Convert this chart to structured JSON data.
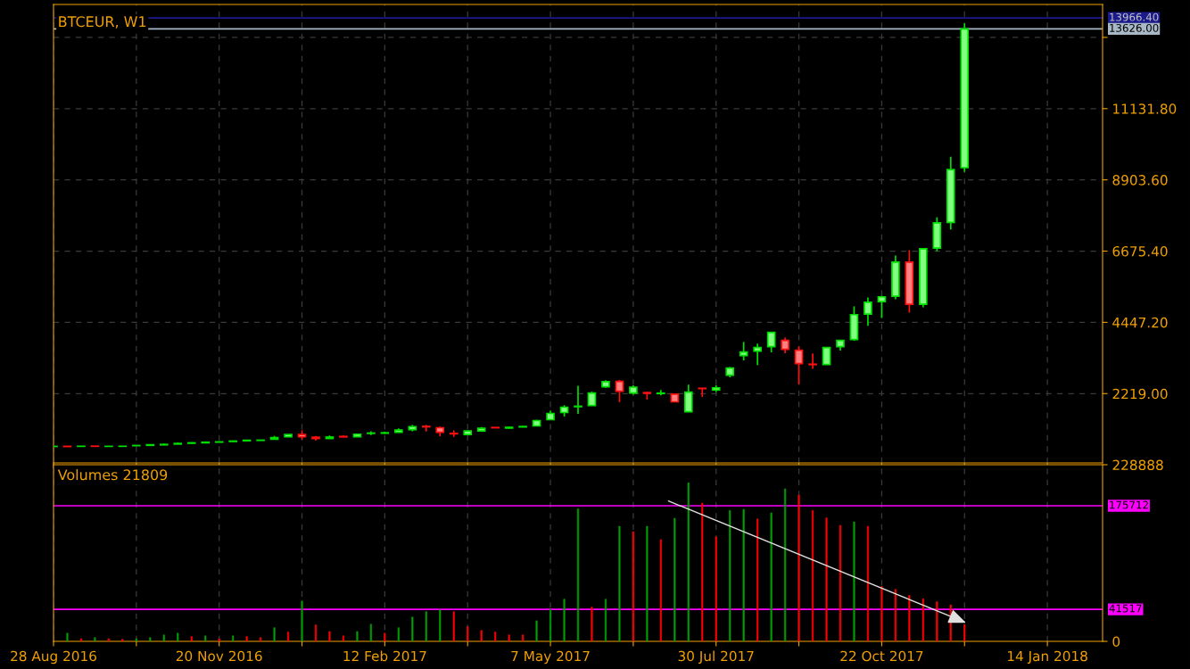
{
  "chart_data": [
    {
      "type": "candlestick",
      "title": "BTCEUR, W1",
      "x": [
        "2016-08-28",
        "2016-09-04",
        "2016-09-11",
        "2016-09-18",
        "2016-09-25",
        "2016-10-02",
        "2016-10-09",
        "2016-10-16",
        "2016-10-23",
        "2016-10-30",
        "2016-11-06",
        "2016-11-13",
        "2016-11-20",
        "2016-11-27",
        "2016-12-04",
        "2016-12-11",
        "2016-12-18",
        "2016-12-25",
        "2017-01-01",
        "2017-01-08",
        "2017-01-15",
        "2017-01-22",
        "2017-01-29",
        "2017-02-05",
        "2017-02-12",
        "2017-02-19",
        "2017-02-26",
        "2017-03-05",
        "2017-03-12",
        "2017-03-19",
        "2017-03-26",
        "2017-04-02",
        "2017-04-09",
        "2017-04-16",
        "2017-04-23",
        "2017-04-30",
        "2017-05-07",
        "2017-05-14",
        "2017-05-21",
        "2017-05-28",
        "2017-06-04",
        "2017-06-11",
        "2017-06-18",
        "2017-06-25",
        "2017-07-02",
        "2017-07-09",
        "2017-07-16",
        "2017-07-23",
        "2017-07-30",
        "2017-08-06",
        "2017-08-13",
        "2017-08-20",
        "2017-08-27",
        "2017-09-03",
        "2017-09-10",
        "2017-09-17",
        "2017-09-24",
        "2017-10-01",
        "2017-10-08",
        "2017-10-15",
        "2017-10-22",
        "2017-10-29",
        "2017-11-05",
        "2017-11-12",
        "2017-11-19",
        "2017-11-26",
        "2017-12-03"
      ],
      "ohlc": [
        [
          565,
          572,
          560,
          568
        ],
        [
          570,
          575,
          560,
          563
        ],
        [
          569,
          574,
          564,
          572
        ],
        [
          575,
          578,
          570,
          571
        ],
        [
          568,
          572,
          564,
          570
        ],
        [
          570,
          574,
          566,
          572
        ],
        [
          590,
          598,
          585,
          596
        ],
        [
          600,
          625,
          580,
          620
        ],
        [
          615,
          660,
          610,
          630
        ],
        [
          640,
          690,
          635,
          660
        ],
        [
          665,
          700,
          655,
          680
        ],
        [
          680,
          715,
          670,
          700
        ],
        [
          700,
          720,
          695,
          710
        ],
        [
          720,
          740,
          715,
          735
        ],
        [
          745,
          765,
          735,
          760
        ],
        [
          755,
          770,
          750,
          763
        ],
        [
          793,
          896,
          785,
          843
        ],
        [
          866,
          945,
          860,
          938
        ],
        [
          940,
          1071,
          782,
          866
        ],
        [
          855,
          896,
          750,
          815
        ],
        [
          815,
          910,
          810,
          860
        ],
        [
          880,
          905,
          855,
          865
        ],
        [
          870,
          955,
          865,
          950
        ],
        [
          975,
          1040,
          920,
          985
        ],
        [
          980,
          1030,
          960,
          995
        ],
        [
          1010,
          1133,
          1005,
          1080
        ],
        [
          1091,
          1240,
          1040,
          1186
        ],
        [
          1195,
          1240,
          1035,
          1180
        ],
        [
          1152,
          1186,
          885,
          1010
        ],
        [
          975,
          1071,
          866,
          960
        ],
        [
          940,
          1071,
          925,
          1050
        ],
        [
          1050,
          1176,
          1030,
          1133
        ],
        [
          1160,
          1165,
          1140,
          1150
        ],
        [
          1140,
          1185,
          1120,
          1165
        ],
        [
          1175,
          1210,
          1170,
          1190
        ],
        [
          1208,
          1400,
          1200,
          1375
        ],
        [
          1403,
          1690,
          1400,
          1598
        ],
        [
          1626,
          1857,
          1503,
          1793
        ],
        [
          1810,
          2461,
          1587,
          1825
        ],
        [
          1848,
          2280,
          1840,
          2238
        ],
        [
          2433,
          2640,
          2400,
          2590
        ],
        [
          2600,
          2650,
          1949,
          2294
        ],
        [
          2238,
          2480,
          2190,
          2422
        ],
        [
          2250,
          2275,
          2033,
          2230
        ],
        [
          2220,
          2330,
          2160,
          2235
        ],
        [
          2200,
          2210,
          1950,
          1960
        ],
        [
          1653,
          2498,
          1650,
          2266
        ],
        [
          2385,
          2400,
          2116,
          2375
        ],
        [
          2330,
          2480,
          2270,
          2400
        ],
        [
          2796,
          3050,
          2730,
          3018
        ],
        [
          3408,
          3834,
          3258,
          3520
        ],
        [
          3547,
          3779,
          3110,
          3659
        ],
        [
          3687,
          4140,
          3508,
          4132
        ],
        [
          3882,
          3973,
          3480,
          3603
        ],
        [
          3575,
          3695,
          2506,
          3157
        ],
        [
          3140,
          3472,
          2990,
          3125
        ],
        [
          3130,
          3670,
          3120,
          3659
        ],
        [
          3687,
          3890,
          3564,
          3882
        ],
        [
          3909,
          4948,
          3870,
          4689
        ],
        [
          4706,
          5227,
          4336,
          5077
        ],
        [
          5096,
          5282,
          4586,
          5246
        ],
        [
          5264,
          6536,
          5170,
          6332
        ],
        [
          6332,
          6703,
          4753,
          5013
        ],
        [
          5013,
          6760,
          4920,
          6750
        ],
        [
          6768,
          7733,
          6675,
          7557
        ],
        [
          7574,
          9627,
          7352,
          9226
        ],
        [
          9284,
          13800,
          9154,
          13626
        ]
      ],
      "colors": [
        "#80ff80",
        "#ff8080",
        "#80ff80",
        "#ff8080",
        "#80ff80",
        "#80ff80",
        "#80ff80",
        "#80ff80",
        "#80ff80",
        "#80ff80",
        "#80ff80",
        "#80ff80",
        "#80ff80",
        "#80ff80",
        "#80ff80",
        "#80ff80",
        "#80ff80",
        "#80ff80",
        "#ff8080",
        "#ff8080",
        "#80ff80",
        "#ff8080",
        "#80ff80",
        "#80ff80",
        "#80ff80",
        "#80ff80",
        "#80ff80",
        "#ff8080",
        "#ff8080",
        "#ff8080",
        "#80ff80",
        "#80ff80",
        "#ff8080",
        "#80ff80",
        "#80ff80",
        "#80ff80",
        "#80ff80",
        "#80ff80",
        "#80ff80",
        "#80ff80",
        "#80ff80",
        "#ff8080",
        "#80ff80",
        "#ff8080",
        "#80ff80",
        "#ff8080",
        "#80ff80",
        "#ff8080",
        "#80ff80",
        "#80ff80",
        "#80ff80",
        "#80ff80",
        "#80ff80",
        "#ff8080",
        "#ff8080",
        "#ff8080",
        "#80ff80",
        "#80ff80",
        "#80ff80",
        "#80ff80",
        "#80ff80",
        "#80ff80",
        "#ff8080",
        "#80ff80",
        "#80ff80",
        "#80ff80",
        "#80ff80"
      ],
      "xlim": [
        "2016-08-28",
        "2018-02-11"
      ],
      "xticks": [
        {
          "value": "2016-08-28",
          "label": null
        },
        {
          "value": "2016-10-09",
          "label": null
        },
        {
          "value": "2016-11-20",
          "label": null
        },
        {
          "value": "2017-01-01",
          "label": null
        },
        {
          "value": "2017-02-12",
          "label": null
        },
        {
          "value": "2017-03-26",
          "label": null
        },
        {
          "value": "2017-05-07",
          "label": null
        },
        {
          "value": "2017-06-18",
          "label": null
        },
        {
          "value": "2017-07-30",
          "label": null
        },
        {
          "value": "2017-09-10",
          "label": null
        },
        {
          "value": "2017-10-22",
          "label": null
        },
        {
          "value": "2017-12-03",
          "label": null
        },
        {
          "value": "2018-01-14",
          "label": null
        }
      ],
      "ylim": [
        50,
        14390
      ],
      "yticks": [
        {
          "value": 2219,
          "label": "2219.00"
        },
        {
          "value": 4447.2,
          "label": "4447.20"
        },
        {
          "value": 6675.4,
          "label": "6675.40"
        },
        {
          "value": 8903.6,
          "label": "8903.60"
        },
        {
          "value": 11131.8,
          "label": "11131.80"
        },
        {
          "value": 13360,
          "label": null
        }
      ],
      "ref_lines": [
        {
          "axis": "y",
          "value": 13966.4,
          "label": "13966.40",
          "color": "#1a1a8c"
        },
        {
          "axis": "y",
          "value": 13626,
          "label": "13626.00",
          "color": "#a9b8c6"
        }
      ],
      "grid": true,
      "tick_labels": "y"
    },
    {
      "type": "bar",
      "title": "Volumes 21809",
      "x": [
        "2016-09-04",
        "2016-09-11",
        "2016-09-18",
        "2016-09-25",
        "2016-10-02",
        "2016-10-09",
        "2016-10-16",
        "2016-10-23",
        "2016-10-30",
        "2016-11-06",
        "2016-11-13",
        "2016-11-20",
        "2016-11-27",
        "2016-12-04",
        "2016-12-11",
        "2016-12-18",
        "2016-12-25",
        "2017-01-01",
        "2017-01-08",
        "2017-01-15",
        "2017-01-22",
        "2017-01-29",
        "2017-02-05",
        "2017-02-12",
        "2017-02-19",
        "2017-02-26",
        "2017-03-05",
        "2017-03-12",
        "2017-03-19",
        "2017-03-26",
        "2017-04-02",
        "2017-04-09",
        "2017-04-16",
        "2017-04-23",
        "2017-04-30",
        "2017-05-07",
        "2017-05-14",
        "2017-05-21",
        "2017-05-28",
        "2017-06-04",
        "2017-06-11",
        "2017-06-18",
        "2017-06-25",
        "2017-07-02",
        "2017-07-09",
        "2017-07-16",
        "2017-07-23",
        "2017-07-30",
        "2017-08-06",
        "2017-08-13",
        "2017-08-20",
        "2017-08-27",
        "2017-09-03",
        "2017-09-10",
        "2017-09-17",
        "2017-09-24",
        "2017-10-01",
        "2017-10-08",
        "2017-10-15",
        "2017-10-22",
        "2017-10-29",
        "2017-11-05",
        "2017-11-12",
        "2017-11-19",
        "2017-11-26",
        "2017-12-03"
      ],
      "values": [
        10600,
        3500,
        4900,
        3500,
        2700,
        3500,
        4900,
        8400,
        10600,
        6200,
        7100,
        3500,
        7100,
        6200,
        4900,
        17700,
        12000,
        52300,
        21300,
        12800,
        7100,
        12800,
        22200,
        10600,
        17700,
        31500,
        38500,
        40800,
        38500,
        19000,
        14200,
        12000,
        8400,
        8400,
        26700,
        41500,
        54700,
        171800,
        44400,
        54700,
        149200,
        142200,
        149200,
        131900,
        159500,
        205500,
        179200,
        135600,
        169700,
        171000,
        158600,
        166500,
        197700,
        189500,
        169700,
        159900,
        150400,
        154900,
        149200,
        71100,
        67400,
        59600,
        55100,
        51400,
        47300,
        21809
      ],
      "colors": [
        "#00a000",
        "#ff0000",
        "#00a000",
        "#ff0000",
        "#ff0000",
        "#00a000",
        "#00a000",
        "#00a000",
        "#00a000",
        "#ff0000",
        "#00a000",
        "#ff0000",
        "#00a000",
        "#ff0000",
        "#ff0000",
        "#00a000",
        "#ff0000",
        "#00a000",
        "#ff0000",
        "#ff0000",
        "#ff0000",
        "#00a000",
        "#00a000",
        "#ff0000",
        "#00a000",
        "#00a000",
        "#00a000",
        "#00a000",
        "#ff0000",
        "#ff0000",
        "#ff0000",
        "#ff0000",
        "#ff0000",
        "#ff0000",
        "#00a000",
        "#00a000",
        "#00a000",
        "#00a000",
        "#ff0000",
        "#00a000",
        "#00a000",
        "#ff0000",
        "#00a000",
        "#ff0000",
        "#00a000",
        "#00a000",
        "#ff0000",
        "#ff0000",
        "#00a000",
        "#00a000",
        "#ff0000",
        "#00a000",
        "#00a000",
        "#ff0000",
        "#ff0000",
        "#ff0000",
        "#ff0000",
        "#00a000",
        "#ff0000",
        "#ff0000",
        "#ff0000",
        "#ff0000",
        "#ff0000",
        "#ff0000",
        "#ff0000",
        "#ff0000"
      ],
      "xlim": [
        "2016-08-28",
        "2018-02-11"
      ],
      "xticks": [
        {
          "value": "2016-08-28",
          "label": "28 Aug 2016"
        },
        {
          "value": "2016-10-09",
          "label": null
        },
        {
          "value": "2016-11-20",
          "label": "20 Nov 2016"
        },
        {
          "value": "2017-01-01",
          "label": null
        },
        {
          "value": "2017-02-12",
          "label": "12 Feb 2017"
        },
        {
          "value": "2017-03-26",
          "label": null
        },
        {
          "value": "2017-05-07",
          "label": "7 May 2017"
        },
        {
          "value": "2017-06-18",
          "label": null
        },
        {
          "value": "2017-07-30",
          "label": "30 Jul 2017"
        },
        {
          "value": "2017-09-10",
          "label": null
        },
        {
          "value": "2017-10-22",
          "label": "22 Oct 2017"
        },
        {
          "value": "2017-12-03",
          "label": null
        },
        {
          "value": "2018-01-14",
          "label": "14 Jan 2018"
        }
      ],
      "ylim": [
        0,
        228888
      ],
      "yticks": [
        0,
        228888
      ],
      "ref_lines": [
        {
          "axis": "y",
          "value": 175712,
          "label": "175712",
          "color": "#ff00ff"
        },
        {
          "axis": "y",
          "value": 41517,
          "label": "41517",
          "color": "#ff00ff"
        }
      ],
      "grid": "x"
    }
  ]
}
